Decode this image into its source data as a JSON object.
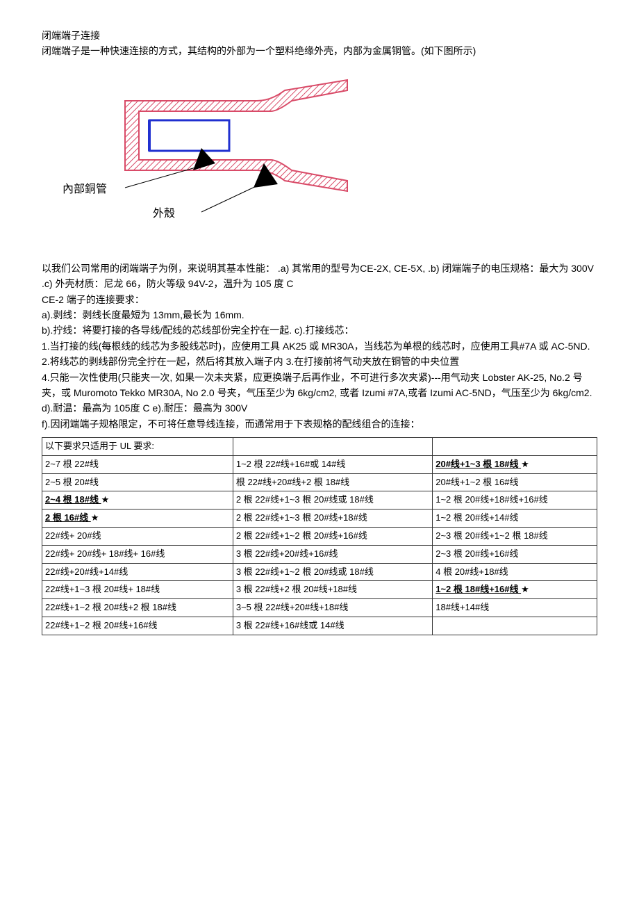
{
  "intro": {
    "title": "闭端端子连接",
    "desc": "闭端端子是一种快速连接的方式，其结构的外部为一个塑料绝缘外壳，内部为金属铜管。(如下图所示)"
  },
  "diagram": {
    "label_inner": "內部銅管",
    "label_outer": "外殼",
    "outer_stroke": "#d94b68",
    "outer_fill_hatch": "#d94b68",
    "inner_stroke": "#2030d0",
    "arrow_fill": "#000000"
  },
  "spec": {
    "line1": "以我们公司常用的闭端端子为例，来说明其基本性能：  .a)  其常用的型号为CE-2X, CE-5X, .b) 闭端端子的电压规格：最大为 300V",
    "line2": ".c)  外壳材质：尼龙 66，防火等级 94V-2，温升为 105 度 C",
    "line3": "CE-2 端子的连接要求：",
    "a": "a).剥线：剥线长度最短为 13mm,最长为 16mm.",
    "b": "b).拧线：将要打接的各导线/配线的芯线部份完全拧在一起. c).打接线芯：",
    "p1": "1.当打接的线(每根线的线芯为多股线芯时)，应使用工具 AK25 或 MR30A，当线芯为单根的线芯时，应使用工具#7A 或 AC-5ND.",
    "p2": "2.将线芯的剥线部份完全拧在一起，然后将其放入端子内  3.在打接前将气动夹放在铜管的中央位置",
    "p4": "4.只能一次性使用(只能夹一次,  如果一次未夹紧，应更换端子后再作业，不可进行多次夹紧)---用气动夹 Lobster AK-25, No.2 号夹，或 Muromoto Tekko MR30A, No 2.0 号夹，气压至少为 6kg/cm2,  或者 Izumi #7A,或者 Izumi AC-5ND，气压至少为 6kg/cm2. d).耐温：最高为 105度 C e).耐压：最高为 300V",
    "f": "f).因闭端端子规格限定，不可将任意导线连接，而通常用于下表规格的配线组合的连接："
  },
  "table": {
    "header_c1": "以下要求只适用于 UL 要求:",
    "rows": [
      {
        "c1": "2~7 根 22#线",
        "c2": "1~2 根 22#线+16#或 14#线",
        "c3": "20#线+1~3 根 18#线  ★",
        "c3_star": true
      },
      {
        "c1": "2~5 根 20#线",
        "c2": "根 22#线+20#线+2 根 18#线",
        "c3": "20#线+1~2 根 16#线"
      },
      {
        "c1": "2~4 根 18#线  ★",
        "c1_star": true,
        "c2": "2 根 22#线+1~3 根 20#线或 18#线",
        "c3": "1~2 根 20#线+18#线+16#线"
      },
      {
        "c1": "2 根 16#线   ★",
        "c1_star": true,
        "c2": "2 根 22#线+1~3 根 20#线+18#线",
        "c3": "1~2 根 20#线+14#线"
      },
      {
        "c1": "22#线+ 20#线",
        "c2": "2 根 22#线+1~2 根 20#线+16#线",
        "c3": "2~3 根 20#线+1~2 根 18#线"
      },
      {
        "c1": "22#线+ 20#线+ 18#线+ 16#线",
        "c2": "3 根 22#线+20#线+16#线",
        "c3": "2~3 根 20#线+16#线"
      },
      {
        "c1": "22#线+20#线+14#线",
        "c2": "3 根 22#线+1~2 根 20#线或 18#线",
        "c3": "4 根 20#线+18#线"
      },
      {
        "c1": "22#线+1~3 根 20#线+ 18#线",
        "c2": "3 根 22#线+2 根 20#线+18#线",
        "c3": "1~2 根 18#线+16#线  ★",
        "c3_star": true
      },
      {
        "c1": "22#线+1~2 根 20#线+2 根 18#线",
        "c2": "3~5 根 22#线+20#线+18#线",
        "c3": "18#线+14#线"
      },
      {
        "c1": "22#线+1~2 根 20#线+16#线",
        "c2": "3 根 22#线+16#线或 14#线",
        "c3": ""
      }
    ]
  }
}
